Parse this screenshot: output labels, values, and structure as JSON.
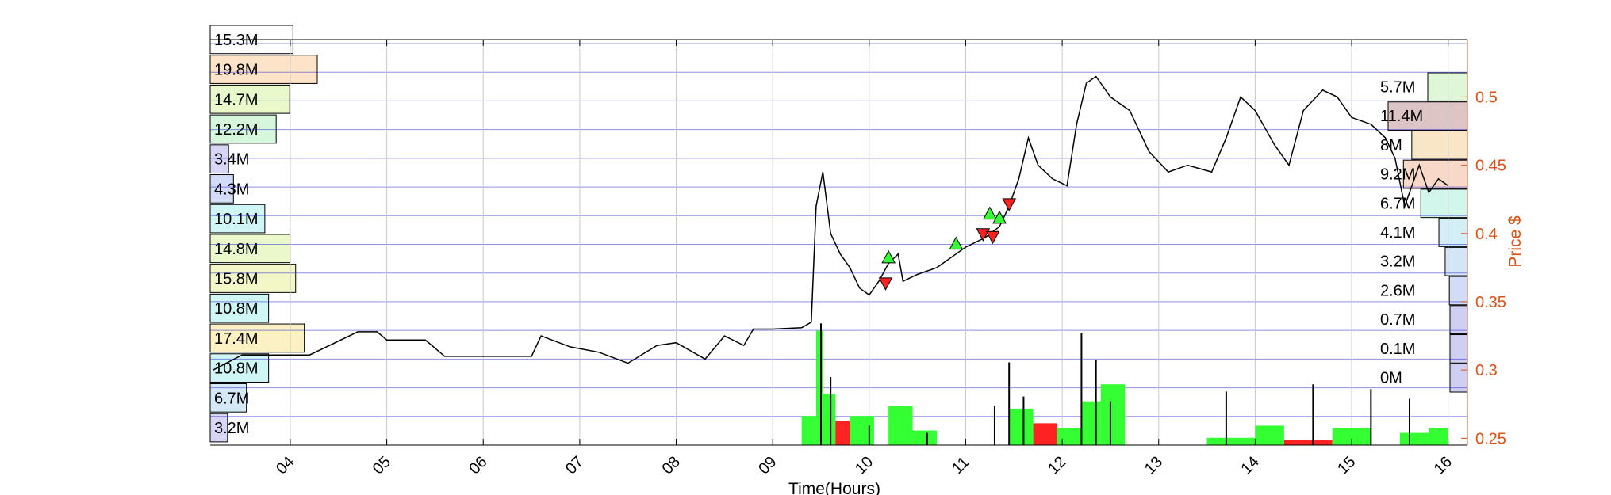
{
  "chart_data": {
    "type": "line",
    "title": "",
    "xlabel": "Time(Hours)",
    "ylabel": "Price $",
    "x_range_hours": [
      3.17,
      16.2
    ],
    "ylim": [
      0.245,
      0.542
    ],
    "x_ticks": [
      "04",
      "05",
      "06",
      "07",
      "08",
      "09",
      "10",
      "11",
      "12",
      "13",
      "14",
      "15",
      "16"
    ],
    "x_tick_values": [
      4,
      5,
      6,
      7,
      8,
      9,
      10,
      11,
      12,
      13,
      14,
      15,
      16
    ],
    "y_ticks": [
      "0.25",
      "0.3",
      "0.35",
      "0.4",
      "0.45",
      "0.5"
    ],
    "y_tick_values": [
      0.25,
      0.3,
      0.35,
      0.4,
      0.45,
      0.5
    ],
    "colors": {
      "price": "#000000",
      "right_axis": "#d95319",
      "grid_blue": "#2222cc",
      "buy": "#33ff33",
      "sell": "#ff2222"
    },
    "price_series": [
      {
        "t": 3.2,
        "p": 0.3
      },
      {
        "t": 3.5,
        "p": 0.311
      },
      {
        "t": 4.0,
        "p": 0.311
      },
      {
        "t": 4.2,
        "p": 0.311
      },
      {
        "t": 4.7,
        "p": 0.328
      },
      {
        "t": 4.9,
        "p": 0.328
      },
      {
        "t": 5.0,
        "p": 0.322
      },
      {
        "t": 5.4,
        "p": 0.322
      },
      {
        "t": 5.6,
        "p": 0.31
      },
      {
        "t": 6.5,
        "p": 0.31
      },
      {
        "t": 6.6,
        "p": 0.325
      },
      {
        "t": 6.9,
        "p": 0.317
      },
      {
        "t": 7.2,
        "p": 0.313
      },
      {
        "t": 7.5,
        "p": 0.305
      },
      {
        "t": 7.8,
        "p": 0.318
      },
      {
        "t": 8.0,
        "p": 0.32
      },
      {
        "t": 8.3,
        "p": 0.308
      },
      {
        "t": 8.5,
        "p": 0.325
      },
      {
        "t": 8.7,
        "p": 0.318
      },
      {
        "t": 8.8,
        "p": 0.33
      },
      {
        "t": 9.0,
        "p": 0.33
      },
      {
        "t": 9.3,
        "p": 0.331
      },
      {
        "t": 9.4,
        "p": 0.335
      },
      {
        "t": 9.45,
        "p": 0.42
      },
      {
        "t": 9.52,
        "p": 0.445
      },
      {
        "t": 9.6,
        "p": 0.4
      },
      {
        "t": 9.7,
        "p": 0.385
      },
      {
        "t": 9.8,
        "p": 0.375
      },
      {
        "t": 9.9,
        "p": 0.36
      },
      {
        "t": 10.0,
        "p": 0.355
      },
      {
        "t": 10.1,
        "p": 0.365
      },
      {
        "t": 10.2,
        "p": 0.378
      },
      {
        "t": 10.3,
        "p": 0.385
      },
      {
        "t": 10.35,
        "p": 0.365
      },
      {
        "t": 10.5,
        "p": 0.37
      },
      {
        "t": 10.7,
        "p": 0.375
      },
      {
        "t": 10.9,
        "p": 0.385
      },
      {
        "t": 11.0,
        "p": 0.39
      },
      {
        "t": 11.2,
        "p": 0.397
      },
      {
        "t": 11.35,
        "p": 0.405
      },
      {
        "t": 11.45,
        "p": 0.42
      },
      {
        "t": 11.55,
        "p": 0.44
      },
      {
        "t": 11.65,
        "p": 0.47
      },
      {
        "t": 11.75,
        "p": 0.45
      },
      {
        "t": 11.9,
        "p": 0.44
      },
      {
        "t": 12.05,
        "p": 0.435
      },
      {
        "t": 12.15,
        "p": 0.48
      },
      {
        "t": 12.25,
        "p": 0.51
      },
      {
        "t": 12.35,
        "p": 0.515
      },
      {
        "t": 12.5,
        "p": 0.5
      },
      {
        "t": 12.7,
        "p": 0.49
      },
      {
        "t": 12.9,
        "p": 0.46
      },
      {
        "t": 13.1,
        "p": 0.445
      },
      {
        "t": 13.3,
        "p": 0.45
      },
      {
        "t": 13.55,
        "p": 0.445
      },
      {
        "t": 13.7,
        "p": 0.47
      },
      {
        "t": 13.85,
        "p": 0.5
      },
      {
        "t": 14.0,
        "p": 0.49
      },
      {
        "t": 14.2,
        "p": 0.465
      },
      {
        "t": 14.35,
        "p": 0.45
      },
      {
        "t": 14.5,
        "p": 0.49
      },
      {
        "t": 14.7,
        "p": 0.505
      },
      {
        "t": 14.85,
        "p": 0.5
      },
      {
        "t": 15.0,
        "p": 0.485
      },
      {
        "t": 15.2,
        "p": 0.48
      },
      {
        "t": 15.35,
        "p": 0.47
      },
      {
        "t": 15.45,
        "p": 0.455
      },
      {
        "t": 15.55,
        "p": 0.42
      },
      {
        "t": 15.6,
        "p": 0.43
      },
      {
        "t": 15.7,
        "p": 0.45
      },
      {
        "t": 15.8,
        "p": 0.43
      },
      {
        "t": 15.9,
        "p": 0.44
      },
      {
        "t": 16.0,
        "p": 0.435
      }
    ],
    "buy_markers": [
      {
        "t": 10.2,
        "p": 0.382
      },
      {
        "t": 10.9,
        "p": 0.392
      },
      {
        "t": 11.25,
        "p": 0.414
      },
      {
        "t": 11.35,
        "p": 0.411
      }
    ],
    "sell_markers": [
      {
        "t": 10.17,
        "p": 0.364
      },
      {
        "t": 11.18,
        "p": 0.4
      },
      {
        "t": 11.28,
        "p": 0.398
      },
      {
        "t": 11.45,
        "p": 0.422
      }
    ],
    "volume_blocks": [
      {
        "t0": 9.3,
        "t1": 9.45,
        "level": 0.12,
        "side": "buy"
      },
      {
        "t0": 9.45,
        "t1": 9.52,
        "level": 0.47,
        "side": "buy"
      },
      {
        "t0": 9.52,
        "t1": 9.65,
        "level": 0.21,
        "side": "buy"
      },
      {
        "t0": 9.65,
        "t1": 9.8,
        "level": 0.1,
        "side": "sell"
      },
      {
        "t0": 9.8,
        "t1": 10.05,
        "level": 0.12,
        "side": "buy"
      },
      {
        "t0": 10.2,
        "t1": 10.45,
        "level": 0.16,
        "side": "buy"
      },
      {
        "t0": 10.45,
        "t1": 10.7,
        "level": 0.06,
        "side": "buy"
      },
      {
        "t0": 11.45,
        "t1": 11.7,
        "level": 0.15,
        "side": "buy"
      },
      {
        "t0": 11.7,
        "t1": 11.95,
        "level": 0.09,
        "side": "sell"
      },
      {
        "t0": 11.95,
        "t1": 12.2,
        "level": 0.07,
        "side": "buy"
      },
      {
        "t0": 12.2,
        "t1": 12.4,
        "level": 0.18,
        "side": "buy"
      },
      {
        "t0": 12.4,
        "t1": 12.65,
        "level": 0.25,
        "side": "buy"
      },
      {
        "t0": 13.5,
        "t1": 14.0,
        "level": 0.03,
        "side": "buy"
      },
      {
        "t0": 14.0,
        "t1": 14.3,
        "level": 0.08,
        "side": "buy"
      },
      {
        "t0": 14.3,
        "t1": 14.8,
        "level": 0.02,
        "side": "sell"
      },
      {
        "t0": 14.8,
        "t1": 15.2,
        "level": 0.07,
        "side": "buy"
      },
      {
        "t0": 15.5,
        "t1": 15.8,
        "level": 0.05,
        "side": "buy"
      },
      {
        "t0": 15.8,
        "t1": 16.0,
        "level": 0.07,
        "side": "buy"
      }
    ],
    "volume_spikes": [
      {
        "t": 9.5,
        "level": 0.5
      },
      {
        "t": 9.6,
        "level": 0.28
      },
      {
        "t": 10.0,
        "level": 0.08
      },
      {
        "t": 10.6,
        "level": 0.05
      },
      {
        "t": 11.3,
        "level": 0.16
      },
      {
        "t": 11.45,
        "level": 0.34
      },
      {
        "t": 11.6,
        "level": 0.2
      },
      {
        "t": 12.2,
        "level": 0.46
      },
      {
        "t": 12.35,
        "level": 0.35
      },
      {
        "t": 12.5,
        "level": 0.18
      },
      {
        "t": 13.7,
        "level": 0.22
      },
      {
        "t": 14.6,
        "level": 0.25
      },
      {
        "t": 15.2,
        "level": 0.23
      },
      {
        "t": 15.6,
        "level": 0.19
      }
    ],
    "left_volume_profile": [
      {
        "label": "15.3M",
        "value": 15.3,
        "color": "#ffffff"
      },
      {
        "label": "19.8M",
        "value": 19.8,
        "color": "#fde3c8"
      },
      {
        "label": "14.7M",
        "value": 14.7,
        "color": "#eaf9cc"
      },
      {
        "label": "12.2M",
        "value": 12.2,
        "color": "#d6f7dc"
      },
      {
        "label": "3.4M",
        "value": 3.4,
        "color": "#d7d7f5"
      },
      {
        "label": "4.3M",
        "value": 4.3,
        "color": "#d3dcf7"
      },
      {
        "label": "10.1M",
        "value": 10.1,
        "color": "#cff5f6"
      },
      {
        "label": "14.8M",
        "value": 14.8,
        "color": "#eaf8cc"
      },
      {
        "label": "15.8M",
        "value": 15.8,
        "color": "#f3f7c8"
      },
      {
        "label": "10.8M",
        "value": 10.8,
        "color": "#cff5f5"
      },
      {
        "label": "17.4M",
        "value": 17.4,
        "color": "#fbf1c3"
      },
      {
        "label": "10.8M",
        "value": 10.8,
        "color": "#cff5f5"
      },
      {
        "label": "6.7M",
        "value": 6.7,
        "color": "#d5e8f7"
      },
      {
        "label": "3.2M",
        "value": 3.2,
        "color": "#d7d7f5"
      }
    ],
    "right_volume_profile": [
      {
        "label": "5.7M",
        "value": 5.7,
        "color": "#dff7d7"
      },
      {
        "label": "11.4M",
        "value": 11.4,
        "color": "#dcc5c4"
      },
      {
        "label": "8M",
        "value": 8.0,
        "color": "#f9e6c6"
      },
      {
        "label": "9.2M",
        "value": 9.2,
        "color": "#f8d8c7"
      },
      {
        "label": "6.7M",
        "value": 6.7,
        "color": "#d2f5ec"
      },
      {
        "label": "4.1M",
        "value": 4.1,
        "color": "#d3eef6"
      },
      {
        "label": "3.2M",
        "value": 3.2,
        "color": "#d3e6f7"
      },
      {
        "label": "2.6M",
        "value": 2.6,
        "color": "#d3dcf6"
      },
      {
        "label": "0.7M",
        "value": 0.7,
        "color": "#cfcff3"
      },
      {
        "label": "0.1M",
        "value": 0.1,
        "color": "#cfcff3"
      },
      {
        "label": "0M",
        "value": 0.0,
        "color": "#cfcff3"
      }
    ]
  }
}
